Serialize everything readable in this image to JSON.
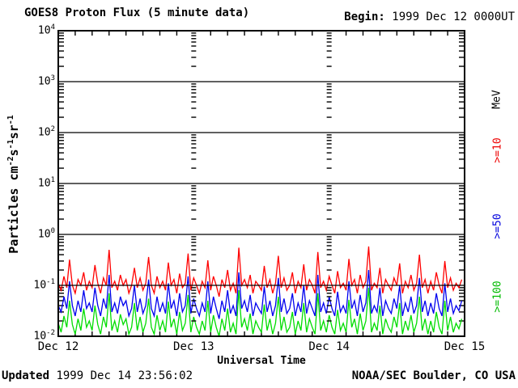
{
  "header": {
    "title": "GOES8 Proton Flux (5 minute data)",
    "begin_label": "Begin:",
    "begin_value": "1999 Dec 12 0000UT"
  },
  "footer": {
    "updated_label": "Updated",
    "updated_value": "1999 Dec 14 23:56:02",
    "credit": "NOAA/SEC Boulder, CO USA"
  },
  "chart_data": {
    "type": "line",
    "title": "GOES8 Proton Flux (5 minute data)",
    "xlabel": "Universal Time",
    "ylabel_parts": [
      {
        "t": "Particles cm"
      },
      {
        "sup": "-2"
      },
      {
        "t": "s"
      },
      {
        "sup": "-1"
      },
      {
        "t": "sr"
      },
      {
        "sup": "-1"
      }
    ],
    "ylim": [
      0.01,
      10000
    ],
    "y_scale": "log",
    "y_tick_base": "10",
    "y_tick_exponents": [
      "4",
      "3",
      "2",
      "1",
      "0",
      "-1",
      "-2"
    ],
    "x_hours": 72,
    "x_step_hours": 0.5,
    "x_ticks": [
      {
        "label": "Dec 12",
        "hour": 0
      },
      {
        "label": "Dec 13",
        "hour": 24
      },
      {
        "label": "Dec 14",
        "hour": 48
      },
      {
        "label": "Dec 15",
        "hour": 72
      }
    ],
    "x_minor_tick_hours": 3,
    "interior_day_gridlines_hours": [
      24,
      48
    ],
    "grid": {
      "horizontal_decade_lines": true,
      "vertical_day_lines_style": "log-minor-dashes"
    },
    "legend": {
      "unit_label": "MeV",
      "unit_color": "#000000",
      "entries": [
        {
          "label": ">=10",
          "color": "#ee0000"
        },
        {
          "label": ">=50",
          "color": "#0000dd"
        },
        {
          "label": ">=100",
          "color": "#00bb00"
        }
      ]
    },
    "series": [
      {
        "name": ">=10 MeV",
        "color": "#ff0000",
        "values": [
          0.11,
          0.08,
          0.15,
          0.09,
          0.32,
          0.1,
          0.07,
          0.13,
          0.1,
          0.18,
          0.08,
          0.12,
          0.09,
          0.25,
          0.11,
          0.07,
          0.14,
          0.1,
          0.5,
          0.09,
          0.12,
          0.08,
          0.16,
          0.1,
          0.13,
          0.07,
          0.1,
          0.22,
          0.09,
          0.14,
          0.08,
          0.11,
          0.36,
          0.1,
          0.07,
          0.15,
          0.09,
          0.12,
          0.08,
          0.28,
          0.1,
          0.13,
          0.07,
          0.17,
          0.09,
          0.11,
          0.42,
          0.08,
          0.14,
          0.1,
          0.07,
          0.12,
          0.09,
          0.31,
          0.08,
          0.15,
          0.1,
          0.06,
          0.13,
          0.09,
          0.2,
          0.08,
          0.11,
          0.07,
          0.55,
          0.1,
          0.13,
          0.09,
          0.16,
          0.07,
          0.12,
          0.1,
          0.08,
          0.24,
          0.09,
          0.13,
          0.07,
          0.11,
          0.38,
          0.09,
          0.14,
          0.08,
          0.1,
          0.18,
          0.07,
          0.12,
          0.09,
          0.26,
          0.08,
          0.13,
          0.1,
          0.07,
          0.45,
          0.09,
          0.12,
          0.08,
          0.15,
          0.1,
          0.07,
          0.19,
          0.09,
          0.11,
          0.08,
          0.33,
          0.1,
          0.13,
          0.07,
          0.16,
          0.09,
          0.12,
          0.58,
          0.08,
          0.11,
          0.09,
          0.22,
          0.07,
          0.13,
          0.1,
          0.08,
          0.14,
          0.1,
          0.27,
          0.07,
          0.12,
          0.09,
          0.16,
          0.08,
          0.11,
          0.4,
          0.09,
          0.13,
          0.07,
          0.12,
          0.08,
          0.18,
          0.1,
          0.07,
          0.3,
          0.09,
          0.14,
          0.08,
          0.11,
          0.09,
          0.13
        ]
      },
      {
        "name": ">=50 MeV",
        "color": "#0000ee",
        "values": [
          0.04,
          0.03,
          0.06,
          0.035,
          0.12,
          0.04,
          0.025,
          0.05,
          0.03,
          0.08,
          0.035,
          0.045,
          0.03,
          0.09,
          0.04,
          0.025,
          0.055,
          0.035,
          0.16,
          0.03,
          0.045,
          0.028,
          0.06,
          0.04,
          0.05,
          0.025,
          0.035,
          0.1,
          0.03,
          0.055,
          0.028,
          0.04,
          0.13,
          0.035,
          0.025,
          0.06,
          0.03,
          0.045,
          0.028,
          0.11,
          0.035,
          0.05,
          0.025,
          0.07,
          0.03,
          0.04,
          0.15,
          0.028,
          0.055,
          0.035,
          0.025,
          0.045,
          0.03,
          0.12,
          0.028,
          0.06,
          0.035,
          0.022,
          0.05,
          0.03,
          0.08,
          0.028,
          0.04,
          0.025,
          0.18,
          0.035,
          0.05,
          0.03,
          0.065,
          0.025,
          0.045,
          0.035,
          0.028,
          0.095,
          0.03,
          0.05,
          0.025,
          0.04,
          0.14,
          0.03,
          0.055,
          0.028,
          0.035,
          0.07,
          0.025,
          0.045,
          0.03,
          0.1,
          0.028,
          0.05,
          0.035,
          0.025,
          0.16,
          0.03,
          0.045,
          0.028,
          0.06,
          0.035,
          0.025,
          0.075,
          0.03,
          0.04,
          0.028,
          0.12,
          0.035,
          0.05,
          0.025,
          0.065,
          0.03,
          0.045,
          0.2,
          0.028,
          0.04,
          0.03,
          0.09,
          0.025,
          0.05,
          0.035,
          0.028,
          0.055,
          0.035,
          0.1,
          0.025,
          0.045,
          0.03,
          0.06,
          0.028,
          0.04,
          0.14,
          0.03,
          0.05,
          0.025,
          0.045,
          0.028,
          0.07,
          0.035,
          0.025,
          0.11,
          0.03,
          0.055,
          0.028,
          0.04,
          0.032,
          0.05
        ]
      },
      {
        "name": ">=100 MeV",
        "color": "#00dd00",
        "values": [
          0.018,
          0.012,
          0.025,
          0.015,
          0.05,
          0.017,
          0.011,
          0.022,
          0.013,
          0.035,
          0.015,
          0.02,
          0.013,
          0.04,
          0.017,
          0.011,
          0.024,
          0.015,
          0.07,
          0.013,
          0.02,
          0.012,
          0.027,
          0.017,
          0.022,
          0.011,
          0.015,
          0.045,
          0.013,
          0.024,
          0.012,
          0.018,
          0.055,
          0.015,
          0.011,
          0.026,
          0.013,
          0.02,
          0.012,
          0.048,
          0.015,
          0.022,
          0.011,
          0.03,
          0.013,
          0.018,
          0.065,
          0.012,
          0.024,
          0.015,
          0.011,
          0.02,
          0.013,
          0.05,
          0.012,
          0.026,
          0.015,
          0.01,
          0.022,
          0.013,
          0.035,
          0.012,
          0.018,
          0.011,
          0.08,
          0.015,
          0.022,
          0.013,
          0.028,
          0.011,
          0.02,
          0.015,
          0.012,
          0.042,
          0.013,
          0.022,
          0.011,
          0.018,
          0.06,
          0.013,
          0.024,
          0.012,
          0.015,
          0.03,
          0.011,
          0.02,
          0.013,
          0.045,
          0.012,
          0.022,
          0.015,
          0.011,
          0.07,
          0.013,
          0.02,
          0.012,
          0.026,
          0.015,
          0.011,
          0.033,
          0.013,
          0.018,
          0.012,
          0.052,
          0.015,
          0.022,
          0.011,
          0.028,
          0.013,
          0.02,
          0.09,
          0.012,
          0.018,
          0.013,
          0.04,
          0.011,
          0.022,
          0.015,
          0.012,
          0.024,
          0.015,
          0.045,
          0.011,
          0.02,
          0.013,
          0.026,
          0.012,
          0.018,
          0.06,
          0.013,
          0.022,
          0.011,
          0.02,
          0.012,
          0.03,
          0.015,
          0.011,
          0.05,
          0.013,
          0.024,
          0.012,
          0.018,
          0.014,
          0.022
        ]
      }
    ]
  }
}
